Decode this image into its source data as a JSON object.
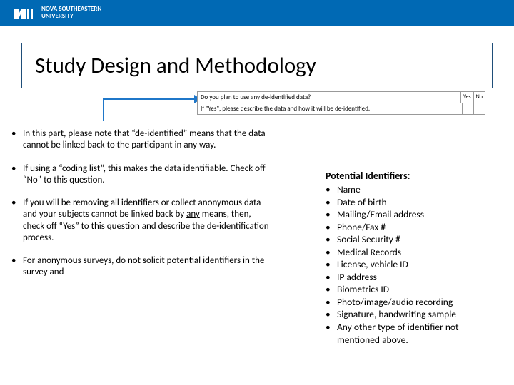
{
  "header": {
    "logo_initials": "NSU",
    "logo_line1": "NOVA SOUTHEASTERN",
    "logo_line2": "UNIVERSITY"
  },
  "title": "Study Design and Methodology",
  "form_snippet": {
    "question1": "Do you plan to use any de-identified data?",
    "yes_label": "Yes",
    "no_label": "No",
    "question2": "If \"Yes\", please describe the data and how it will be de-identified."
  },
  "bullets": [
    "In this part, please note that “de-identified” means that the data cannot be linked back to the participant in any way.",
    "If using a “coding list”, this makes the data identifiable. Check off “No” to this question.",
    "If you will be removing all identifiers or collect anonymous data and your subjects cannot be linked back by <u>any</u> means, then, check off “Yes” to this question and describe the de-identification process.",
    "For anonymous surveys, do not solicit potential identifiers in the survey and"
  ],
  "identifiers_header": "Potential Identifiers:",
  "identifiers": [
    "Name",
    "Date of birth",
    "Mailing/Email address",
    "Phone/Fax #",
    "Social Security #",
    "Medical Records",
    "License, vehicle ID",
    "IP address",
    "Biometrics ID",
    "Photo/image/audio recording",
    "Signature, handwriting sample",
    "Any other type of identifier not mentioned above."
  ],
  "colors": {
    "header_bg": "#0069b4",
    "arrow": "#1f77c9",
    "title_border": "#1f4e79"
  }
}
